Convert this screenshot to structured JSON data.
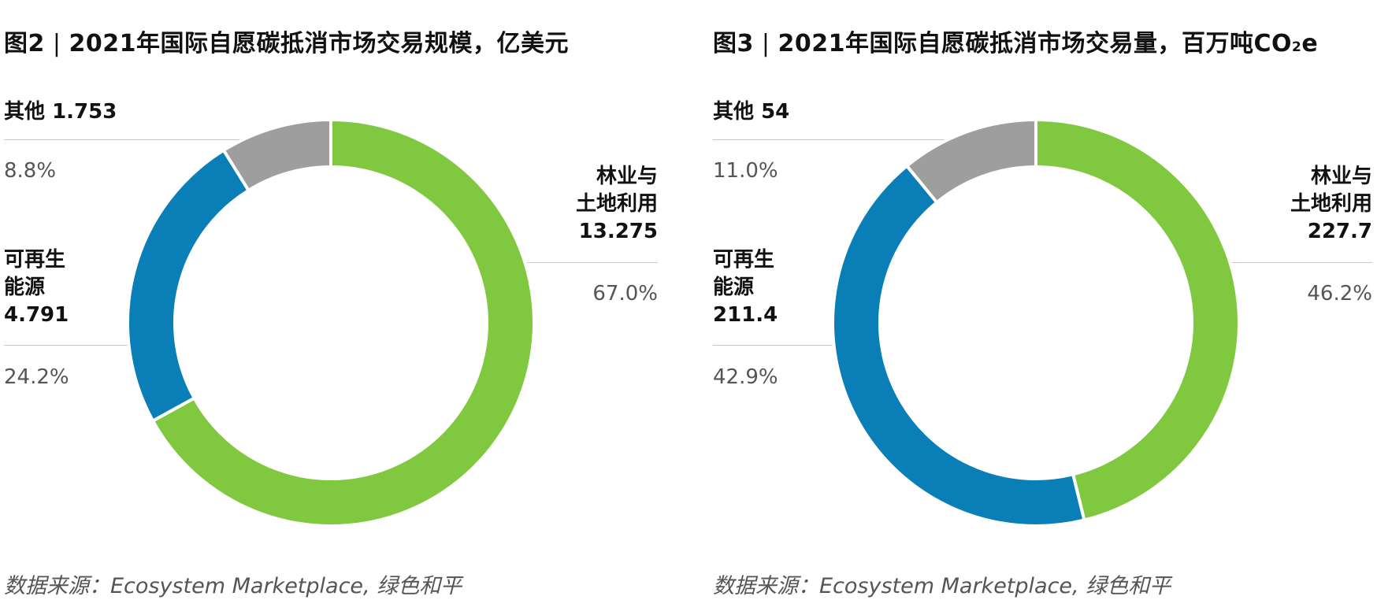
{
  "charts": [
    {
      "title_prefix": "图2",
      "title_text": "2021年国际自愿碳抵消市场交易规模，亿美元",
      "source": "数据来源：Ecosystem Marketplace, 绿色和平",
      "other": {
        "name": "其他",
        "value": "1.753",
        "pct": "8.8%"
      },
      "renew": {
        "line1": "可再生",
        "line2": "能源",
        "value": "4.791",
        "pct": "24.2%"
      },
      "forest": {
        "line1": "林业与",
        "line2": "土地利用",
        "value": "13.275",
        "pct": "67.0%"
      }
    },
    {
      "title_prefix": "图3",
      "title_text_main": "2021年国际自愿碳抵消市场交易量，百万吨CO",
      "title_sub": "2",
      "title_end": "e",
      "source": "数据来源：Ecosystem Marketplace, 绿色和平",
      "other": {
        "name": "其他",
        "value": "54",
        "pct": "11.0%"
      },
      "renew": {
        "line1": "可再生",
        "line2": "能源",
        "value": "211.4",
        "pct": "42.9%"
      },
      "forest": {
        "line1": "林业与",
        "line2": "土地利用",
        "value": "227.7",
        "pct": "46.2%"
      }
    }
  ],
  "chart_data": [
    {
      "type": "pie",
      "title": "图2 | 2021年国际自愿碳抵消市场交易规模，亿美元",
      "unit": "亿美元",
      "categories": [
        "林业与土地利用",
        "可再生能源",
        "其他"
      ],
      "values": [
        13.275,
        4.791,
        1.753
      ],
      "percentages": [
        67.0,
        24.2,
        8.8
      ],
      "colors": [
        "#80c83f",
        "#0a7fb7",
        "#9e9e9e"
      ],
      "donut": true
    },
    {
      "type": "pie",
      "title": "图3 | 2021年国际自愿碳抵消市场交易量，百万吨CO2e",
      "unit": "百万吨CO2e",
      "categories": [
        "林业与土地利用",
        "可再生能源",
        "其他"
      ],
      "values": [
        227.7,
        211.4,
        54
      ],
      "percentages": [
        46.2,
        42.9,
        11.0
      ],
      "colors": [
        "#80c83f",
        "#0a7fb7",
        "#9e9e9e"
      ],
      "donut": true
    }
  ]
}
